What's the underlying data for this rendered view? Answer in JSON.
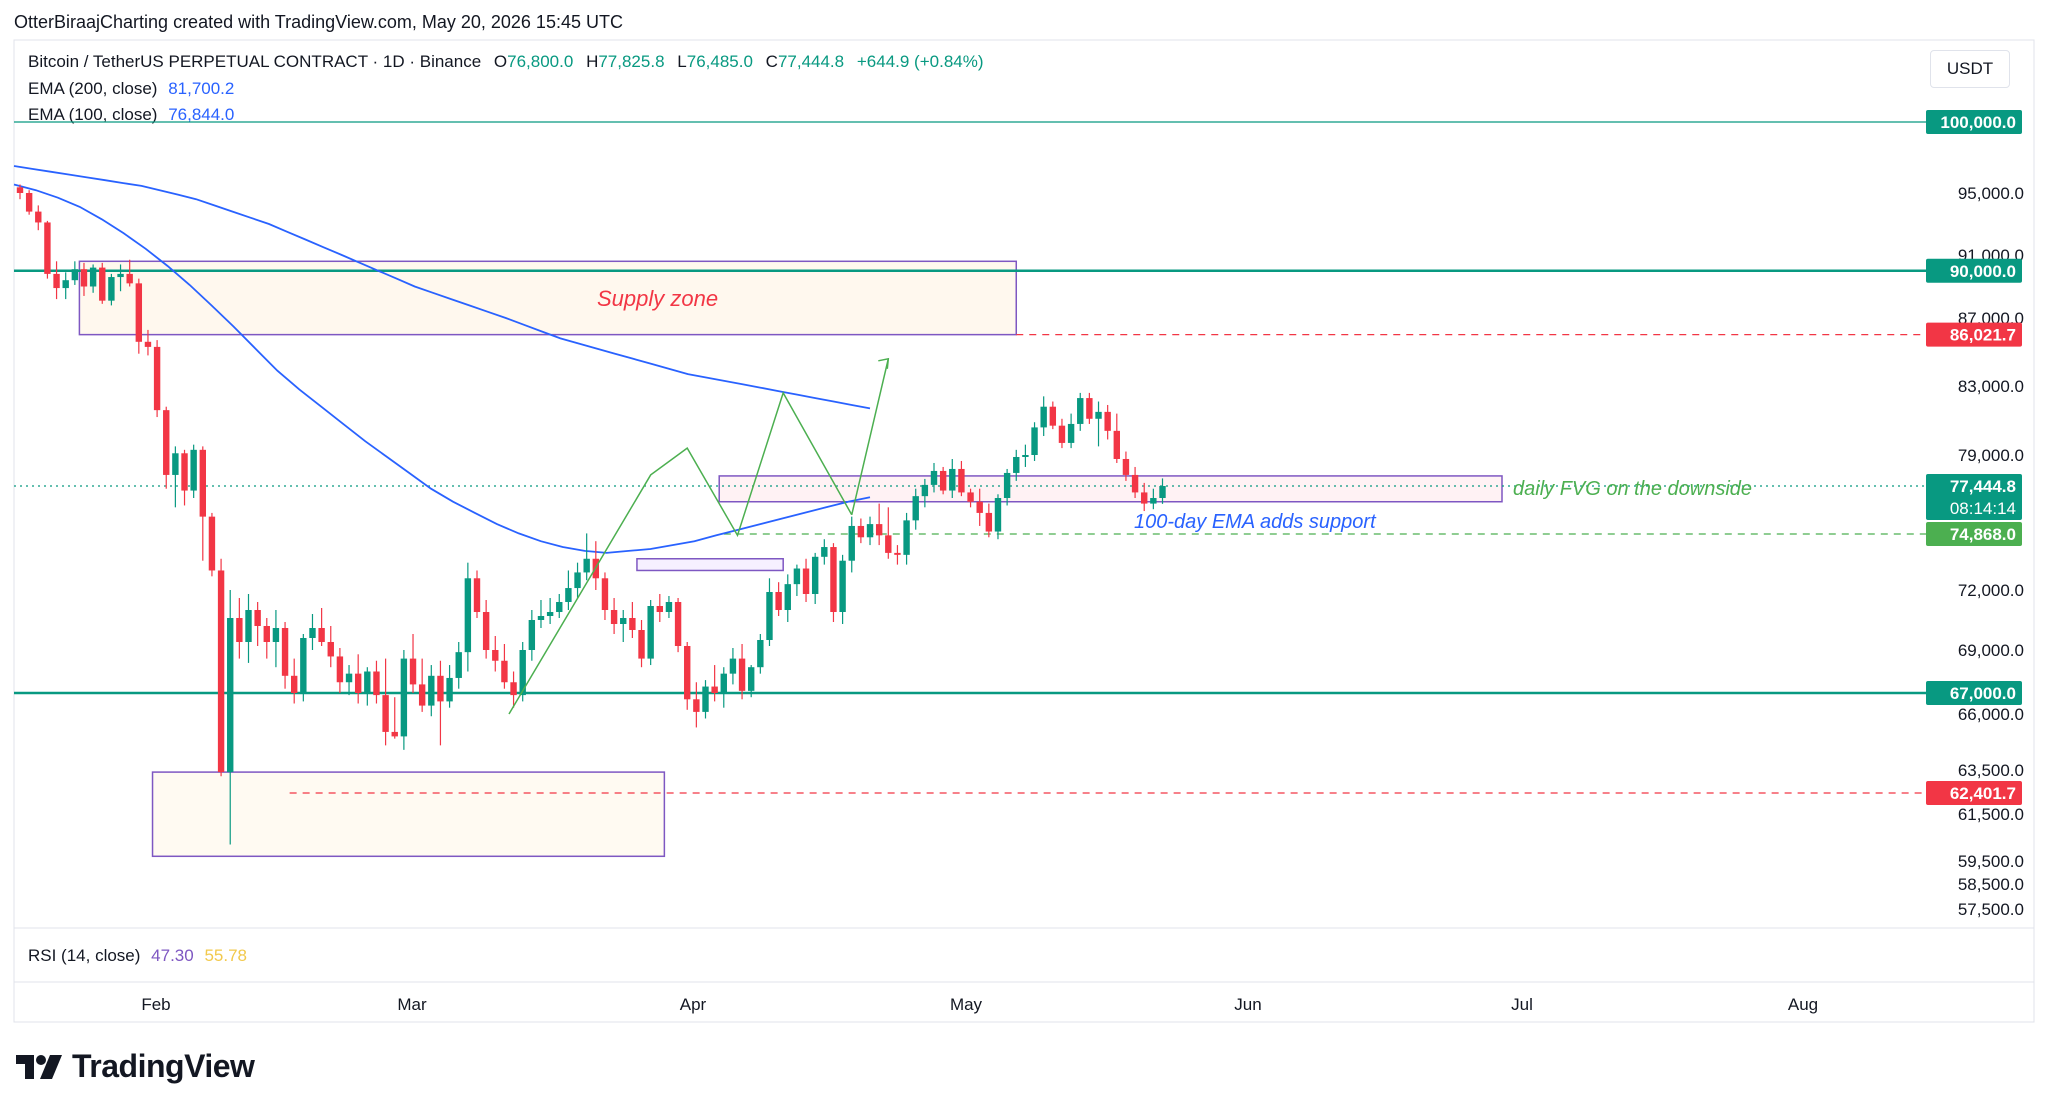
{
  "header": {
    "attribution": "OtterBiraajCharting created with TradingView.com, May 20, 2026 15:45 UTC"
  },
  "legend": {
    "symbol": "Bitcoin / TetherUS PERPETUAL CONTRACT · 1D · Binance",
    "o_key": "O",
    "o_val": "76,800.0",
    "h_key": "H",
    "h_val": "77,825.8",
    "l_key": "L",
    "l_val": "76,485.0",
    "c_key": "C",
    "c_val": "77,444.8",
    "change": "+644.9 (+0.84%)",
    "ema200_label": "EMA (200, close)",
    "ema200_value": "81,700.2",
    "ema100_label": "EMA (100, close)",
    "ema100_value": "76,844.0"
  },
  "unit_button": "USDT",
  "rsi": {
    "label": "RSI (14, close)",
    "value1": "47.30",
    "value2": "55.78"
  },
  "logo": {
    "text": "TradingView",
    "icon": "tradingview-logo-icon"
  },
  "colors": {
    "up": "#089981",
    "down": "#f23645",
    "ema": "#2962ff",
    "zone": "#7e57c2",
    "green_line": "#089981",
    "annotation_green": "#4caf50"
  },
  "chart_data": {
    "type": "candlestick",
    "x_axis_labels": [
      "Feb",
      "Mar",
      "Apr",
      "May",
      "Jun",
      "Jul",
      "Aug"
    ],
    "y_axis_ticks": [
      95000,
      91000,
      87000,
      83000,
      79000,
      72000,
      69000,
      66000,
      63500,
      61500,
      59500,
      58500,
      57500
    ],
    "y_axis_tick_labels": [
      "95,000.0",
      "91,000.0",
      "87,000.0",
      "83,000.0",
      "79,000.0",
      "72,000.0",
      "69,000.0",
      "66,000.0",
      "63,500.0",
      "61,500.0",
      "59,500.0",
      "58,500.0",
      "57,500.0"
    ],
    "price_badges": [
      {
        "label": "100,000.0",
        "value": 100000,
        "color": "#089981"
      },
      {
        "label": "90,000.0",
        "value": 90000,
        "color": "#089981"
      },
      {
        "label": "86,021.7",
        "value": 86021.7,
        "color": "#f23645"
      },
      {
        "label": "77,444.8",
        "value": 77444.8,
        "color": "#089981",
        "sub": "08:14:14"
      },
      {
        "label": "74,868.0",
        "value": 74868,
        "color": "#4caf50"
      },
      {
        "label": "67,000.0",
        "value": 67000,
        "color": "#089981"
      },
      {
        "label": "62,401.7",
        "value": 62401.7,
        "color": "#f23645"
      }
    ],
    "horizontal_levels": [
      100000,
      90000,
      67000
    ],
    "dashed_levels": [
      {
        "value": 86021.7,
        "color": "#f23645"
      },
      {
        "value": 74868,
        "color": "#4caf50"
      },
      {
        "value": 62401.7,
        "color": "#f23645"
      },
      {
        "value": 77444.8,
        "color": "#089981"
      }
    ],
    "annotations": [
      {
        "text": "Supply zone",
        "color": "#f23645"
      },
      {
        "text": "daily FVG on the downside",
        "color": "#4caf50"
      },
      {
        "text": "100-day EMA adds support",
        "color": "#2962ff"
      }
    ],
    "candles": [
      [
        95400,
        95600,
        94600,
        95000
      ],
      [
        95000,
        95200,
        93600,
        93800
      ],
      [
        93800,
        94200,
        92600,
        93100
      ],
      [
        93100,
        93200,
        89500,
        89800
      ],
      [
        89800,
        90600,
        88200,
        88900
      ],
      [
        88900,
        89900,
        88200,
        89400
      ],
      [
        89400,
        90600,
        89100,
        90100
      ],
      [
        90100,
        90500,
        88400,
        89000
      ],
      [
        89000,
        90400,
        88600,
        90200
      ],
      [
        90200,
        90500,
        87900,
        88100
      ],
      [
        88100,
        89800,
        87800,
        89600
      ],
      [
        89600,
        90400,
        88700,
        89800
      ],
      [
        89800,
        90700,
        89000,
        89200
      ],
      [
        89200,
        89500,
        84900,
        85600
      ],
      [
        85600,
        86300,
        84800,
        85300
      ],
      [
        85300,
        85700,
        81200,
        81600
      ],
      [
        81600,
        81800,
        77300,
        78000
      ],
      [
        78000,
        79500,
        76300,
        79100
      ],
      [
        79100,
        79300,
        76400,
        77200
      ],
      [
        77200,
        79600,
        76800,
        79300
      ],
      [
        79300,
        79500,
        73500,
        75800
      ],
      [
        75800,
        76000,
        72700,
        73000
      ],
      [
        73000,
        73600,
        63200,
        63400
      ],
      [
        63400,
        72000,
        60200,
        70600
      ],
      [
        70600,
        71600,
        68600,
        69400
      ],
      [
        69400,
        71800,
        68400,
        71000
      ],
      [
        71000,
        71400,
        69200,
        70200
      ],
      [
        70200,
        70600,
        68600,
        69400
      ],
      [
        69400,
        71000,
        68200,
        70100
      ],
      [
        70100,
        70400,
        67200,
        67800
      ],
      [
        67800,
        68600,
        66500,
        67000
      ],
      [
        67000,
        69800,
        66600,
        69600
      ],
      [
        69600,
        70800,
        69000,
        70100
      ],
      [
        70100,
        71100,
        69200,
        69400
      ],
      [
        69400,
        70200,
        68200,
        68700
      ],
      [
        68700,
        69100,
        67000,
        67500
      ],
      [
        67500,
        68300,
        66900,
        67900
      ],
      [
        67900,
        68800,
        66500,
        67000
      ],
      [
        67000,
        68200,
        66400,
        68000
      ],
      [
        68000,
        68500,
        66500,
        66900
      ],
      [
        66900,
        68600,
        64600,
        65200
      ],
      [
        65200,
        66800,
        64900,
        65000
      ],
      [
        65000,
        69000,
        64400,
        68600
      ],
      [
        68600,
        69800,
        67000,
        67400
      ],
      [
        67400,
        68600,
        66100,
        66400
      ],
      [
        66400,
        68300,
        65900,
        67800
      ],
      [
        67800,
        68500,
        64600,
        66600
      ],
      [
        66600,
        68300,
        66300,
        67700
      ],
      [
        67700,
        69400,
        67200,
        68900
      ],
      [
        68900,
        73400,
        68000,
        72600
      ],
      [
        72600,
        73000,
        70600,
        70900
      ],
      [
        70900,
        71500,
        68600,
        69000
      ],
      [
        69000,
        69700,
        68000,
        68500
      ],
      [
        68500,
        69300,
        67200,
        67500
      ],
      [
        67500,
        68000,
        66300,
        66900
      ],
      [
        66900,
        69400,
        66600,
        69000
      ],
      [
        69000,
        71000,
        68500,
        70500
      ],
      [
        70500,
        71500,
        70100,
        70700
      ],
      [
        70700,
        71600,
        70300,
        70900
      ],
      [
        70900,
        71800,
        70600,
        71400
      ],
      [
        71400,
        73000,
        71000,
        72100
      ],
      [
        72100,
        73400,
        71600,
        72900
      ],
      [
        72900,
        74900,
        72500,
        73600
      ],
      [
        73600,
        74500,
        72000,
        72600
      ],
      [
        72600,
        72900,
        70500,
        71000
      ],
      [
        71000,
        71600,
        69800,
        70300
      ],
      [
        70300,
        71000,
        69400,
        70600
      ],
      [
        70600,
        71400,
        69600,
        70000
      ],
      [
        70000,
        70500,
        68200,
        68600
      ],
      [
        68600,
        71500,
        68300,
        71200
      ],
      [
        71200,
        71800,
        70400,
        70900
      ],
      [
        70900,
        71700,
        70600,
        71400
      ],
      [
        71400,
        71600,
        68900,
        69200
      ],
      [
        69200,
        69400,
        66200,
        66700
      ],
      [
        66700,
        67500,
        65400,
        66100
      ],
      [
        66100,
        67600,
        65800,
        67300
      ],
      [
        67300,
        68300,
        66600,
        67000
      ],
      [
        67000,
        68200,
        66300,
        67900
      ],
      [
        67900,
        69100,
        67400,
        68600
      ],
      [
        68600,
        69300,
        66700,
        67100
      ],
      [
        67100,
        68300,
        66800,
        68200
      ],
      [
        68200,
        69800,
        67900,
        69500
      ],
      [
        69500,
        72600,
        69200,
        71900
      ],
      [
        71900,
        72400,
        70700,
        71000
      ],
      [
        71000,
        72800,
        70400,
        72300
      ],
      [
        72300,
        73300,
        71700,
        73100
      ],
      [
        73100,
        73600,
        71400,
        71800
      ],
      [
        71800,
        73900,
        71300,
        73700
      ],
      [
        73700,
        74600,
        73300,
        74200
      ],
      [
        74200,
        74400,
        70400,
        70900
      ],
      [
        70900,
        73800,
        70300,
        73500
      ],
      [
        73500,
        75800,
        72900,
        75300
      ],
      [
        75300,
        75700,
        74400,
        74700
      ],
      [
        74700,
        75800,
        74300,
        75400
      ],
      [
        75400,
        76500,
        74300,
        74800
      ],
      [
        74800,
        76300,
        73600,
        73900
      ],
      [
        73900,
        74300,
        73300,
        73800
      ],
      [
        73800,
        76000,
        73300,
        75600
      ],
      [
        75600,
        77300,
        75100,
        76900
      ],
      [
        76900,
        77800,
        76300,
        77500
      ],
      [
        77500,
        78600,
        77100,
        78200
      ],
      [
        78200,
        78400,
        77000,
        77200
      ],
      [
        77200,
        78800,
        76800,
        78300
      ],
      [
        78300,
        78700,
        76900,
        77100
      ],
      [
        77100,
        77300,
        76300,
        76600
      ],
      [
        76600,
        77300,
        75300,
        76000
      ],
      [
        76000,
        76500,
        74700,
        75000
      ],
      [
        75000,
        77000,
        74600,
        76800
      ],
      [
        76800,
        78300,
        76400,
        78100
      ],
      [
        78100,
        79300,
        77700,
        78900
      ],
      [
        78900,
        79600,
        78400,
        79000
      ],
      [
        79000,
        80900,
        78700,
        80600
      ],
      [
        80600,
        82400,
        80100,
        81800
      ],
      [
        81800,
        82100,
        80500,
        80700
      ],
      [
        80700,
        81100,
        79400,
        79700
      ],
      [
        79700,
        81400,
        79400,
        80800
      ],
      [
        80800,
        82600,
        80400,
        82300
      ],
      [
        82300,
        82600,
        80800,
        81100
      ],
      [
        81100,
        82100,
        79500,
        81500
      ],
      [
        81500,
        81900,
        79900,
        80400
      ],
      [
        80400,
        81400,
        78600,
        78800
      ],
      [
        78800,
        79200,
        77700,
        78000
      ],
      [
        78000,
        78400,
        76800,
        77100
      ],
      [
        77100,
        77600,
        76100,
        76500
      ],
      [
        76500,
        77300,
        76200,
        76800
      ],
      [
        76800,
        77825.8,
        76485,
        77444.8
      ]
    ],
    "ema200": [
      96900,
      96700,
      96500,
      96300,
      96100,
      95900,
      95700,
      95500,
      95200,
      94900,
      94600,
      94200,
      93800,
      93400,
      93000,
      92500,
      92000,
      91500,
      91000,
      90500,
      90000,
      89500,
      89000,
      88600,
      88200,
      87800,
      87400,
      87000,
      86600,
      86200,
      85800,
      85500,
      85200,
      84900,
      84600,
      84300,
      84000,
      83700,
      83500,
      83300,
      83100,
      82900,
      82700,
      82500,
      82300,
      82100,
      81900,
      81700
    ],
    "ema100": [
      95600,
      95200,
      94700,
      94100,
      93300,
      92400,
      91400,
      90300,
      89100,
      87800,
      86500,
      85200,
      83900,
      82800,
      81800,
      80800,
      79800,
      78900,
      78100,
      77300,
      76600,
      76000,
      75400,
      74900,
      74500,
      74200,
      74000,
      73900,
      74000,
      74100,
      74300,
      74500,
      74800,
      75100,
      75400,
      75700,
      76000,
      76300,
      76600,
      76844
    ]
  }
}
